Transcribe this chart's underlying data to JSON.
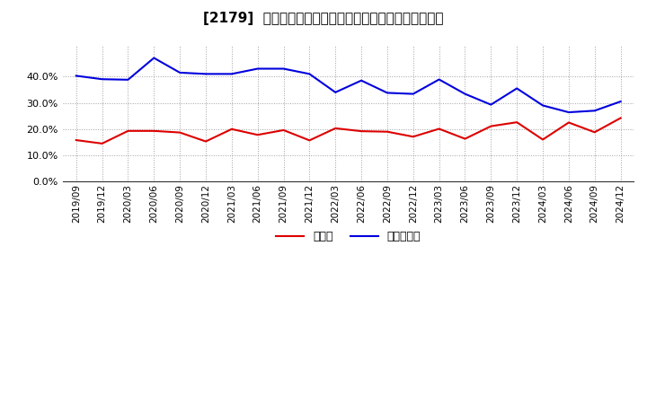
{
  "title": "[2179]  現預金、有利子負債の総資産に対する比率の推移",
  "dates": [
    "2019/09",
    "2019/12",
    "2020/03",
    "2020/06",
    "2020/09",
    "2020/12",
    "2021/03",
    "2021/06",
    "2021/09",
    "2021/12",
    "2022/03",
    "2022/06",
    "2022/09",
    "2022/12",
    "2023/03",
    "2023/06",
    "2023/09",
    "2023/12",
    "2024/03",
    "2024/06",
    "2024/09",
    "2024/12"
  ],
  "cash_values": [
    0.158,
    0.145,
    0.193,
    0.193,
    0.187,
    0.153,
    0.2,
    0.178,
    0.196,
    0.157,
    0.203,
    0.192,
    0.19,
    0.171,
    0.201,
    0.163,
    0.211,
    0.226,
    0.16,
    0.225,
    0.188,
    0.242
  ],
  "debt_values": [
    0.403,
    0.39,
    0.388,
    0.471,
    0.415,
    0.41,
    0.41,
    0.43,
    0.43,
    0.41,
    0.34,
    0.385,
    0.338,
    0.334,
    0.389,
    0.334,
    0.293,
    0.355,
    0.29,
    0.264,
    0.27,
    0.305
  ],
  "cash_color": "#dd0000",
  "debt_color": "#0000dd",
  "background_color": "#ffffff",
  "plot_bg_color": "#ffffff",
  "grid_color": "#888888",
  "legend_cash": "現預金",
  "legend_debt": "有利子負債",
  "ylim": [
    0.0,
    0.52
  ],
  "yticks": [
    0.0,
    0.1,
    0.2,
    0.3,
    0.4
  ],
  "title_fontsize": 11,
  "tick_fontsize": 7.5,
  "legend_fontsize": 9
}
